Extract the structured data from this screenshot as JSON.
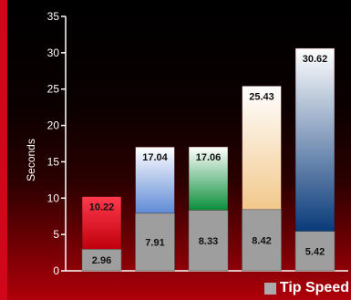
{
  "chart_data": {
    "type": "bar",
    "categories": [
      "",
      "",
      "",
      "",
      ""
    ],
    "series": [
      {
        "name": "Tip Speed",
        "values": [
          2.96,
          7.91,
          8.33,
          8.42,
          5.42
        ]
      },
      {
        "name": "",
        "values": [
          10.22,
          17.04,
          17.06,
          25.43,
          30.62
        ]
      }
    ],
    "bar_gradients": [
      [
        "#ff3a4e",
        "#c0000c"
      ],
      [
        "#ffffff",
        "#5e8ad6"
      ],
      [
        "#ffffff",
        "#0a8e3a"
      ],
      [
        "#ffffff",
        "#f2c88c"
      ],
      [
        "#ffffff",
        "#0a3a7a"
      ]
    ],
    "stack_color": "#9e9e9e",
    "title": "",
    "xlabel": "",
    "ylabel": "Seconds",
    "ylim": [
      0,
      35
    ],
    "yticks": [
      0,
      5,
      10,
      15,
      20,
      25,
      30,
      35
    ],
    "grid": false,
    "legend": "bottom-right"
  },
  "legend_label": "Tip Speed",
  "colors": {
    "background_bottom": "#b0000a",
    "accent": "#d0071a"
  }
}
